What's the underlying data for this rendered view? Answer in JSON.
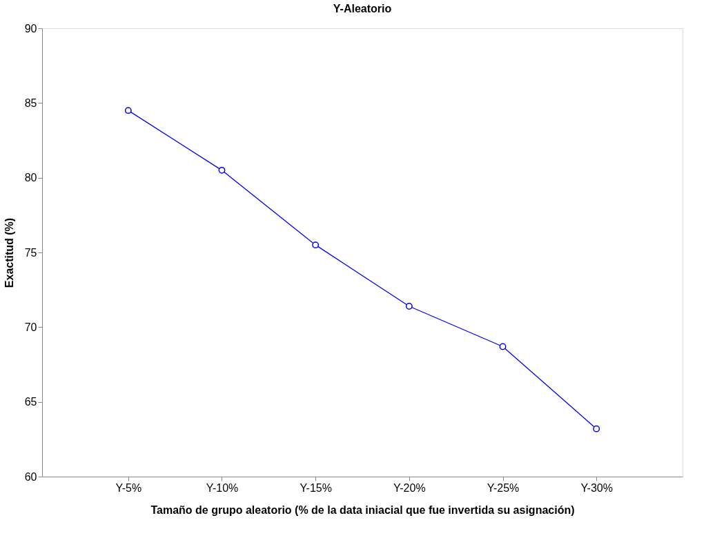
{
  "chart_data": {
    "type": "line",
    "title": "Y-Aleatorio",
    "xlabel": "Tamaño de grupo aleatorio (% de la data iniacial que fue invertida su asignación)",
    "ylabel": "Exactitud (%)",
    "categories": [
      "Y-5%",
      "Y-10%",
      "Y-15%",
      "Y-20%",
      "Y-25%",
      "Y-30%"
    ],
    "series": [
      {
        "color": "#0000ff",
        "values": [
          84.5,
          80.5,
          75.5,
          71.4,
          68.7,
          63.2
        ]
      }
    ],
    "ylim": [
      60,
      90
    ],
    "yticks": [
      60,
      65,
      70,
      75,
      80,
      85,
      90
    ],
    "grid": false,
    "marker": "circle",
    "line_style": "solid"
  }
}
